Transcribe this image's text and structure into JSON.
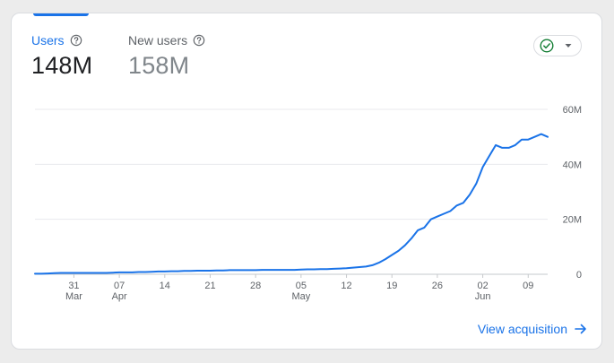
{
  "metrics": {
    "users": {
      "label": "Users",
      "value": "148M"
    },
    "new_users": {
      "label": "New users",
      "value": "158M"
    }
  },
  "status_dropdown": {
    "icon": "check-circle-icon",
    "caret_icon": "caret-down-icon"
  },
  "footer": {
    "link_label": "View acquisition",
    "arrow_icon": "arrow-right-icon"
  },
  "colors": {
    "accent": "#1a73e8",
    "line": "#1a73e8",
    "status_green": "#188038"
  },
  "chart_data": {
    "type": "line",
    "series": [
      {
        "values": [
          0.2,
          0.2,
          0.3,
          0.4,
          0.5,
          0.5,
          0.5,
          0.5,
          0.5,
          0.5,
          0.5,
          0.5,
          0.6,
          0.7,
          0.7,
          0.7,
          0.8,
          0.8,
          0.9,
          1.0,
          1.0,
          1.1,
          1.1,
          1.2,
          1.2,
          1.3,
          1.3,
          1.3,
          1.4,
          1.4,
          1.5,
          1.5,
          1.5,
          1.5,
          1.5,
          1.6,
          1.6,
          1.6,
          1.6,
          1.6,
          1.6,
          1.7,
          1.8,
          1.8,
          1.9,
          1.9,
          2.0,
          2.1,
          2.2,
          2.4,
          2.6,
          2.8,
          3.3,
          4.2,
          5.5,
          7.0,
          8.5,
          10.5,
          13,
          16,
          17,
          20,
          21,
          22,
          23,
          25,
          26,
          29,
          33,
          39,
          43,
          47,
          46,
          46,
          47,
          49,
          49,
          50,
          51,
          50
        ]
      }
    ],
    "x_ticks": [
      {
        "day": "31",
        "month": "Mar",
        "pos": 6
      },
      {
        "day": "07",
        "month": "Apr",
        "pos": 13
      },
      {
        "day": "14",
        "pos": 20
      },
      {
        "day": "21",
        "pos": 27
      },
      {
        "day": "28",
        "pos": 34
      },
      {
        "day": "05",
        "month": "May",
        "pos": 41
      },
      {
        "day": "12",
        "pos": 48
      },
      {
        "day": "19",
        "pos": 55
      },
      {
        "day": "26",
        "pos": 62
      },
      {
        "day": "02",
        "month": "Jun",
        "pos": 69
      },
      {
        "day": "09",
        "pos": 76
      }
    ],
    "y_ticks": [
      "0",
      "20M",
      "40M",
      "60M"
    ],
    "ylim": [
      0,
      60
    ],
    "grid": true
  }
}
